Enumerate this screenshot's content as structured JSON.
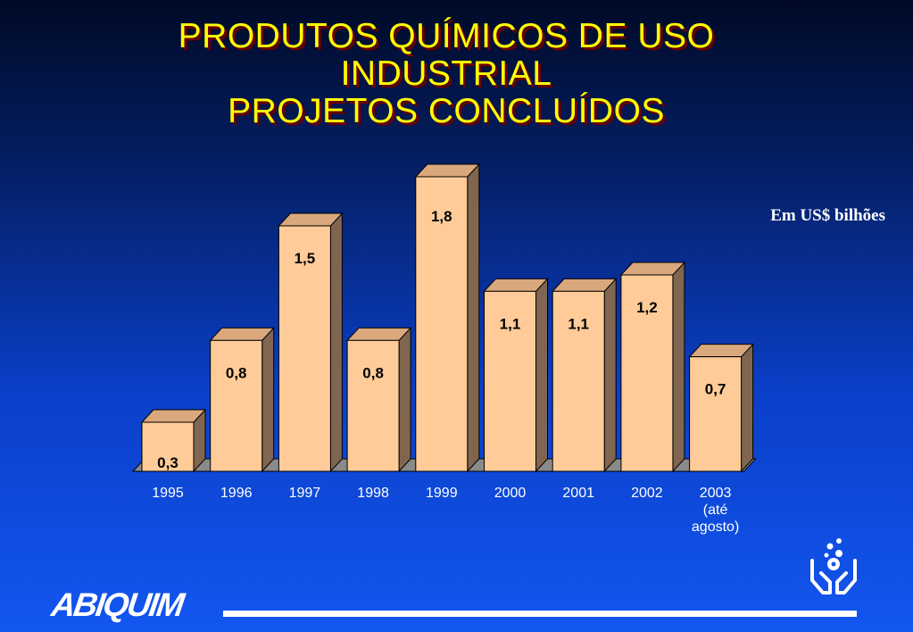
{
  "title": {
    "lines": [
      "PRODUTOS QUÍMICOS DE USO",
      "INDUSTRIAL",
      "PROJETOS CONCLUÍDOS"
    ]
  },
  "unit_label": "Em US$ bilhões",
  "logo_text": "ABIQUIM",
  "colors": {
    "bar_front": "#ffcc99",
    "bar_top": "#d9a87c",
    "bar_side": "#806650",
    "title": "#ffff00",
    "title_shadow": "#6b0000"
  },
  "chart_data": {
    "type": "bar",
    "categories": [
      "1995",
      "1996",
      "1997",
      "1998",
      "1999",
      "2000",
      "2001",
      "2002",
      "2003 (até agosto)"
    ],
    "category_label_lines": [
      [
        "1995"
      ],
      [
        "1996"
      ],
      [
        "1997"
      ],
      [
        "1998"
      ],
      [
        "1999"
      ],
      [
        "2000"
      ],
      [
        "2001"
      ],
      [
        "2002"
      ],
      [
        "2003",
        "(até",
        "agosto)"
      ]
    ],
    "values": [
      0.3,
      0.8,
      1.5,
      0.8,
      1.8,
      1.1,
      1.1,
      1.2,
      0.7
    ],
    "data_labels": [
      "0,3",
      "0,8",
      "1,5",
      "0,8",
      "1,8",
      "1,1",
      "1,1",
      "1,2",
      "0,7"
    ],
    "unit": "Em US$ bilhões",
    "ylim": [
      0,
      1.8
    ],
    "grid": false,
    "style": "3d-columns"
  }
}
